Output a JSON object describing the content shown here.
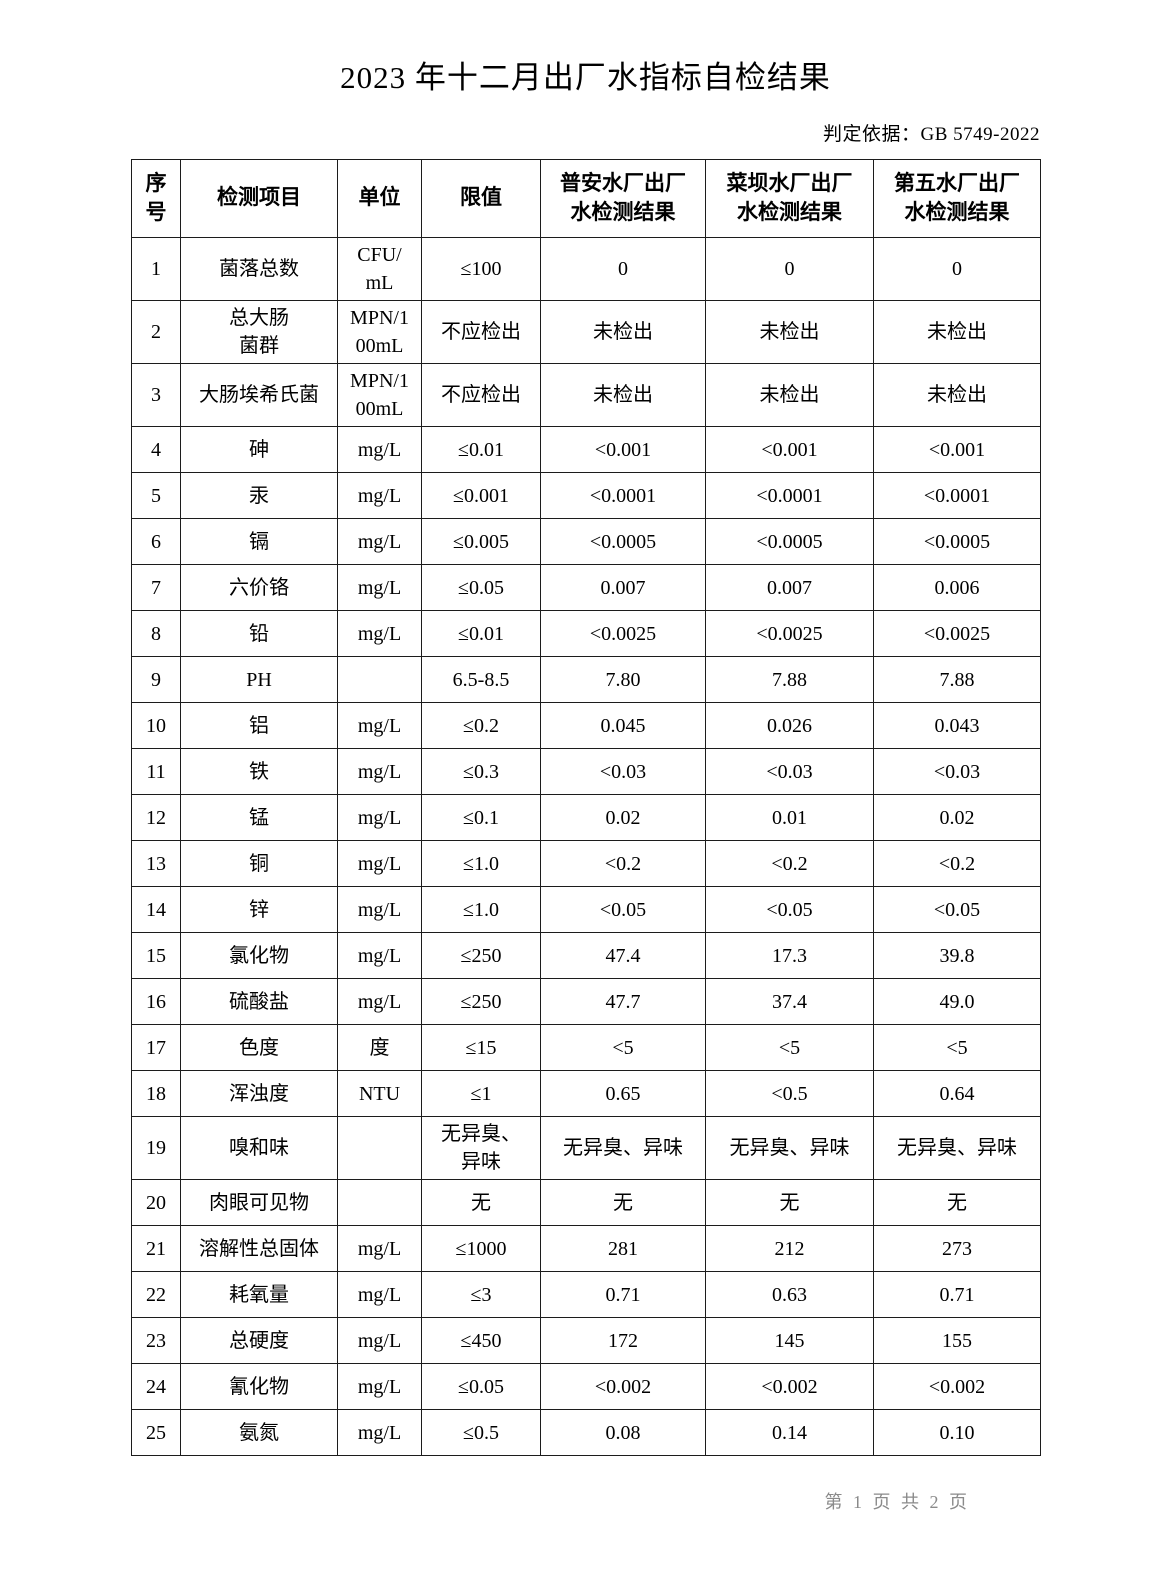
{
  "title": "2023 年十二月出厂水指标自检结果",
  "basis": "判定依据：GB 5749-2022",
  "table": {
    "headers": [
      "序\n号",
      "检测项目",
      "单位",
      "限值",
      "普安水厂出厂\n水检测结果",
      "菜坝水厂出厂\n水检测结果",
      "第五水厂出厂\n水检测结果"
    ],
    "rows": [
      [
        "1",
        "菌落总数",
        "CFU/\nmL",
        "≤100",
        "0",
        "0",
        "0"
      ],
      [
        "2",
        "总大肠\n菌群",
        "MPN/1\n00mL",
        "不应检出",
        "未检出",
        "未检出",
        "未检出"
      ],
      [
        "3",
        "大肠埃希氏菌",
        "MPN/1\n00mL",
        "不应检出",
        "未检出",
        "未检出",
        "未检出"
      ],
      [
        "4",
        "砷",
        "mg/L",
        "≤0.01",
        "<0.001",
        "<0.001",
        "<0.001"
      ],
      [
        "5",
        "汞",
        "mg/L",
        "≤0.001",
        "<0.0001",
        "<0.0001",
        "<0.0001"
      ],
      [
        "6",
        "镉",
        "mg/L",
        "≤0.005",
        "<0.0005",
        "<0.0005",
        "<0.0005"
      ],
      [
        "7",
        "六价铬",
        "mg/L",
        "≤0.05",
        "0.007",
        "0.007",
        "0.006"
      ],
      [
        "8",
        "铅",
        "mg/L",
        "≤0.01",
        "<0.0025",
        "<0.0025",
        "<0.0025"
      ],
      [
        "9",
        "PH",
        "",
        "6.5-8.5",
        "7.80",
        "7.88",
        "7.88"
      ],
      [
        "10",
        "铝",
        "mg/L",
        "≤0.2",
        "0.045",
        "0.026",
        "0.043"
      ],
      [
        "11",
        "铁",
        "mg/L",
        "≤0.3",
        "<0.03",
        "<0.03",
        "<0.03"
      ],
      [
        "12",
        "锰",
        "mg/L",
        "≤0.1",
        "0.02",
        "0.01",
        "0.02"
      ],
      [
        "13",
        "铜",
        "mg/L",
        "≤1.0",
        "<0.2",
        "<0.2",
        "<0.2"
      ],
      [
        "14",
        "锌",
        "mg/L",
        "≤1.0",
        "<0.05",
        "<0.05",
        "<0.05"
      ],
      [
        "15",
        "氯化物",
        "mg/L",
        "≤250",
        "47.4",
        "17.3",
        "39.8"
      ],
      [
        "16",
        "硫酸盐",
        "mg/L",
        "≤250",
        "47.7",
        "37.4",
        "49.0"
      ],
      [
        "17",
        "色度",
        "度",
        "≤15",
        "<5",
        "<5",
        "<5"
      ],
      [
        "18",
        "浑浊度",
        "NTU",
        "≤1",
        "0.65",
        "<0.5",
        "0.64"
      ],
      [
        "19",
        "嗅和味",
        "",
        "无异臭、\n异味",
        "无异臭、异味",
        "无异臭、异味",
        "无异臭、异味"
      ],
      [
        "20",
        "肉眼可见物",
        "",
        "无",
        "无",
        "无",
        "无"
      ],
      [
        "21",
        "溶解性总固体",
        "mg/L",
        "≤1000",
        "281",
        "212",
        "273"
      ],
      [
        "22",
        "耗氧量",
        "mg/L",
        "≤3",
        "0.71",
        "0.63",
        "0.71"
      ],
      [
        "23",
        "总硬度",
        "mg/L",
        "≤450",
        "172",
        "145",
        "155"
      ],
      [
        "24",
        "氰化物",
        "mg/L",
        "≤0.05",
        "<0.002",
        "<0.002",
        "<0.002"
      ],
      [
        "25",
        "氨氮",
        "mg/L",
        "≤0.5",
        "0.08",
        "0.14",
        "0.10"
      ]
    ]
  },
  "footer": "第 1 页 共 2 页"
}
